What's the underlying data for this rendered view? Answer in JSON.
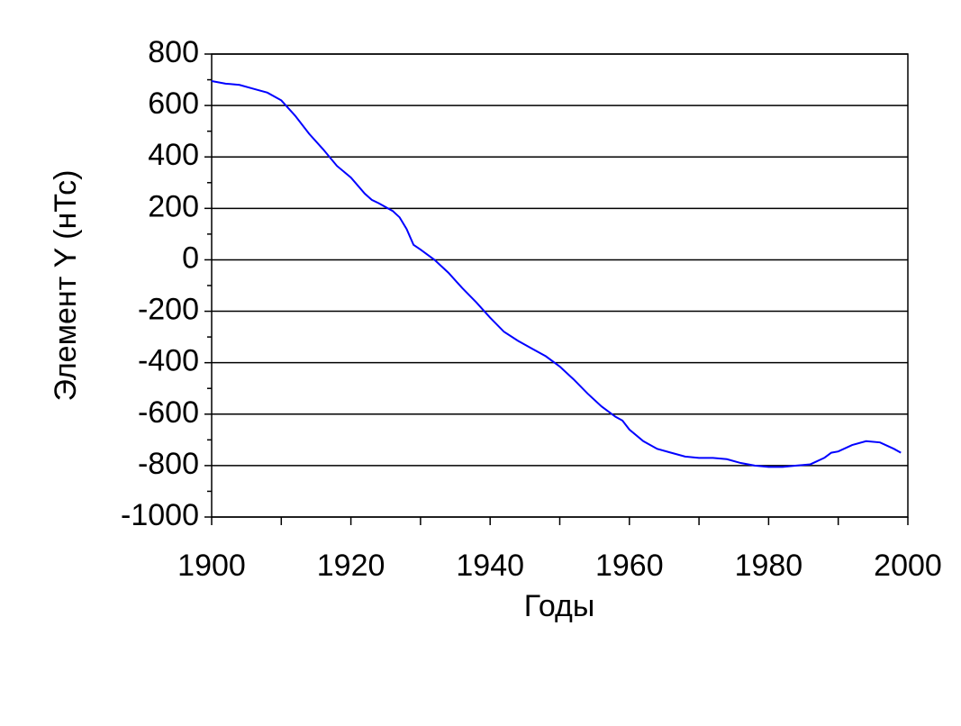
{
  "chart_data": {
    "type": "line",
    "x_label": "Годы",
    "y_label": "Элемент Y (нТс)",
    "x": [
      1900,
      1902,
      1904,
      1906,
      1908,
      1910,
      1912,
      1914,
      1916,
      1918,
      1920,
      1922,
      1923,
      1924,
      1926,
      1927,
      1928,
      1929,
      1930,
      1932,
      1934,
      1936,
      1938,
      1940,
      1942,
      1944,
      1946,
      1948,
      1950,
      1952,
      1954,
      1956,
      1958,
      1959,
      1960,
      1962,
      1964,
      1966,
      1968,
      1970,
      1972,
      1974,
      1976,
      1978,
      1980,
      1982,
      1984,
      1986,
      1988,
      1989,
      1990,
      1992,
      1994,
      1996,
      1998,
      1999
    ],
    "series": [
      {
        "name": "Y",
        "color": "#0000ff",
        "values": [
          695,
          685,
          680,
          665,
          650,
          620,
          560,
          490,
          430,
          365,
          320,
          257,
          233,
          220,
          190,
          165,
          120,
          58,
          40,
          0,
          -50,
          -110,
          -165,
          -225,
          -280,
          -315,
          -345,
          -375,
          -415,
          -465,
          -520,
          -570,
          -610,
          -625,
          -660,
          -705,
          -735,
          -750,
          -765,
          -770,
          -770,
          -775,
          -790,
          -800,
          -805,
          -805,
          -800,
          -795,
          -770,
          -750,
          -745,
          -720,
          -705,
          -710,
          -735,
          -750
        ]
      }
    ],
    "xlim": [
      1900,
      2000
    ],
    "xticks": [
      1900,
      1920,
      1940,
      1960,
      1980,
      2000
    ],
    "xminorticks": [
      1910,
      1930,
      1950,
      1970,
      1990
    ],
    "ylim": [
      -1000,
      800
    ],
    "yticks": [
      -1000,
      -800,
      -600,
      -400,
      -200,
      0,
      200,
      400,
      600,
      800
    ],
    "yminorticks": [
      -900,
      -700,
      -500,
      -300,
      -100,
      100,
      300,
      500,
      700
    ],
    "grid": true
  }
}
